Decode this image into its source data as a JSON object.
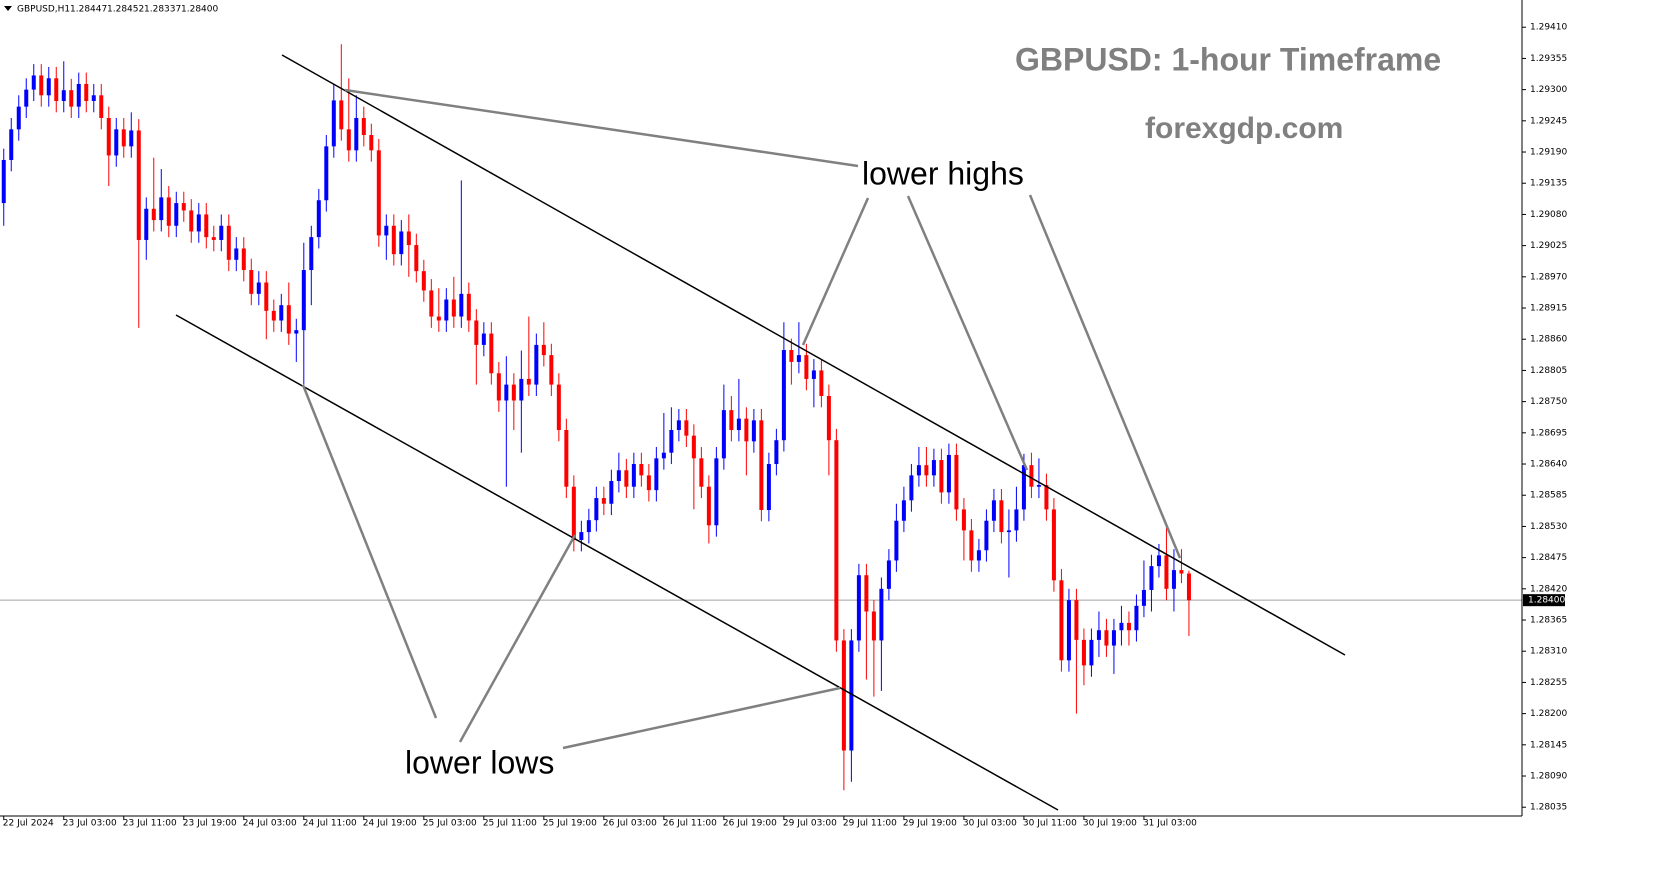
{
  "chart_data": {
    "type": "candlestick",
    "title": "GBPUSD: 1-hour Timeframe",
    "subtitle": "forexgdp.com",
    "symbol": "GBPUSD,H1",
    "ohlc_labels": [
      "1.28447",
      "1.28452",
      "1.28337",
      "1.28400"
    ],
    "annotations": [
      "lower highs",
      "lower lows"
    ],
    "up_color": "#0000ff",
    "down_color": "#ff0000",
    "xlim": [
      -0.5,
      202.4
    ],
    "ylim": [
      1.28016,
      1.29458
    ],
    "xticks": [
      {
        "value": 0,
        "label": "22 Jul 2024"
      },
      {
        "value": 8,
        "label": "23 Jul 03:00"
      },
      {
        "value": 16,
        "label": "23 Jul 11:00"
      },
      {
        "value": 24,
        "label": "23 Jul 19:00"
      },
      {
        "value": 32,
        "label": "24 Jul 03:00"
      },
      {
        "value": 40,
        "label": "24 Jul 11:00"
      },
      {
        "value": 48,
        "label": "24 Jul 19:00"
      },
      {
        "value": 56,
        "label": "25 Jul 03:00"
      },
      {
        "value": 64,
        "label": "25 Jul 11:00"
      },
      {
        "value": 72,
        "label": "25 Jul 19:00"
      },
      {
        "value": 80,
        "label": "26 Jul 03:00"
      },
      {
        "value": 88,
        "label": "26 Jul 11:00"
      },
      {
        "value": 96,
        "label": "26 Jul 19:00"
      },
      {
        "value": 104,
        "label": "29 Jul 03:00"
      },
      {
        "value": 112,
        "label": "29 Jul 11:00"
      },
      {
        "value": 120,
        "label": "29 Jul 19:00"
      },
      {
        "value": 128,
        "label": "30 Jul 03:00"
      },
      {
        "value": 136,
        "label": "30 Jul 11:00"
      },
      {
        "value": 144,
        "label": "30 Jul 19:00"
      },
      {
        "value": 152,
        "label": "31 Jul 03:00"
      }
    ],
    "yticks": [
      {
        "value": 1.2941,
        "label": "1.29410"
      },
      {
        "value": 1.29355,
        "label": "1.29355"
      },
      {
        "value": 1.293,
        "label": "1.29300"
      },
      {
        "value": 1.29245,
        "label": "1.29245"
      },
      {
        "value": 1.2919,
        "label": "1.29190"
      },
      {
        "value": 1.29135,
        "label": "1.29135"
      },
      {
        "value": 1.2908,
        "label": "1.29080"
      },
      {
        "value": 1.29025,
        "label": "1.29025"
      },
      {
        "value": 1.2897,
        "label": "1.28970"
      },
      {
        "value": 1.28915,
        "label": "1.28915"
      },
      {
        "value": 1.2886,
        "label": "1.28860"
      },
      {
        "value": 1.28805,
        "label": "1.28805"
      },
      {
        "value": 1.2875,
        "label": "1.28750"
      },
      {
        "value": 1.28695,
        "label": "1.28695"
      },
      {
        "value": 1.2864,
        "label": "1.28640"
      },
      {
        "value": 1.28585,
        "label": "1.28585"
      },
      {
        "value": 1.2853,
        "label": "1.28530"
      },
      {
        "value": 1.28475,
        "label": "1.28475"
      },
      {
        "value": 1.2842,
        "label": "1.28420"
      },
      {
        "value": 1.28365,
        "label": "1.28365"
      },
      {
        "value": 1.2831,
        "label": "1.28310"
      },
      {
        "value": 1.28255,
        "label": "1.28255"
      },
      {
        "value": 1.282,
        "label": "1.28200"
      },
      {
        "value": 1.28145,
        "label": "1.28145"
      },
      {
        "value": 1.2809,
        "label": "1.28090"
      },
      {
        "value": 1.28035,
        "label": "1.28035"
      }
    ],
    "price_line": {
      "value": 1.284,
      "label": "1.28400"
    },
    "open": [
      1.291,
      1.29176,
      1.2923,
      1.2927,
      1.293,
      1.29325,
      1.2929,
      1.2932,
      1.2928,
      1.29299,
      1.2927,
      1.2931,
      1.2928,
      1.2929,
      1.2925,
      1.29184,
      1.2923,
      1.292,
      1.29228,
      1.29035,
      1.2909,
      1.2907,
      1.2911,
      1.2906,
      1.291,
      1.29087,
      1.2905,
      1.2908,
      1.2904,
      1.29035,
      1.2906,
      1.29,
      1.2902,
      1.28982,
      1.2894,
      1.2896,
      1.2891,
      1.28893,
      1.2892,
      1.2887,
      1.28876,
      1.28982,
      1.2904,
      1.29105,
      1.292,
      1.29281,
      1.2923,
      1.29193,
      1.2925,
      1.2922,
      1.29193,
      1.29043,
      1.2906,
      1.2901,
      1.2905,
      1.29026,
      1.2898,
      1.28946,
      1.289,
      1.28893,
      1.2893,
      1.289,
      1.2894,
      1.28893,
      1.2885,
      1.2887,
      1.288,
      1.28752,
      1.2878,
      1.28752,
      1.2879,
      1.2878,
      1.2885,
      1.28832,
      1.2878,
      1.287,
      1.286,
      1.28506,
      1.2852,
      1.28541,
      1.2858,
      1.2857,
      1.2861,
      1.28629,
      1.286,
      1.2864,
      1.2862,
      1.28594,
      1.2865,
      1.2866,
      1.287,
      1.28717,
      1.2869,
      1.2865,
      1.286,
      1.28532,
      1.2865,
      1.28735,
      1.287,
      1.2872,
      1.2868,
      1.28717,
      1.28559,
      1.2864,
      1.28682,
      1.28841,
      1.2882,
      1.28832,
      1.2879,
      1.28805,
      1.2876,
      1.28682,
      1.28329,
      1.28135,
      1.28329,
      1.28444,
      1.2838,
      1.28329,
      1.2842,
      1.2847,
      1.2854,
      1.28576,
      1.2862,
      1.28638,
      1.2862,
      1.28647,
      1.2859,
      1.28656,
      1.2856,
      1.28523,
      1.2847,
      1.28488,
      1.2854,
      1.28576,
      1.2852,
      1.28523,
      1.2856,
      1.28638,
      1.286,
      1.28603,
      1.2856,
      1.28435,
      1.28294,
      1.284,
      1.2833,
      1.28285,
      1.2833,
      1.28347,
      1.2832,
      1.28347,
      1.2836,
      1.28347,
      1.2839,
      1.28418,
      1.2846,
      1.28479,
      1.2842,
      1.28453,
      1.28447
    ],
    "high": [
      1.29196,
      1.2925,
      1.2929,
      1.2932,
      1.29345,
      1.29345,
      1.2934,
      1.2934,
      1.2935,
      1.29319,
      1.2933,
      1.2933,
      1.2931,
      1.2931,
      1.2927,
      1.2925,
      1.2925,
      1.2926,
      1.29248,
      1.2911,
      1.2918,
      1.2916,
      1.2913,
      1.2912,
      1.2912,
      1.29107,
      1.291,
      1.291,
      1.2906,
      1.2908,
      1.2908,
      1.2904,
      1.2904,
      1.29002,
      1.2898,
      1.2898,
      1.2893,
      1.2894,
      1.2896,
      1.28896,
      1.2903,
      1.2906,
      1.29125,
      1.2922,
      1.2931,
      1.2938,
      1.2932,
      1.2929,
      1.2927,
      1.2924,
      1.29213,
      1.2908,
      1.2908,
      1.2907,
      1.2908,
      1.29046,
      1.29,
      1.28966,
      1.2895,
      1.2895,
      1.2897,
      1.2914,
      1.2896,
      1.28913,
      1.2889,
      1.2889,
      1.2882,
      1.2883,
      1.288,
      1.2884,
      1.289,
      1.2887,
      1.2889,
      1.28852,
      1.288,
      1.2872,
      1.2862,
      1.2854,
      1.28561,
      1.286,
      1.286,
      1.2863,
      1.2866,
      1.28649,
      1.2866,
      1.2866,
      1.2864,
      1.2867,
      1.2873,
      1.2874,
      1.28737,
      1.28737,
      1.2871,
      1.2867,
      1.2862,
      1.2867,
      1.2878,
      1.2876,
      1.2879,
      1.2874,
      1.28737,
      1.28737,
      1.2866,
      1.28702,
      1.2889,
      1.28861,
      1.2889,
      1.28852,
      1.28825,
      1.28825,
      1.2878,
      1.28702,
      1.28349,
      1.28349,
      1.28464,
      1.28464,
      1.284,
      1.2844,
      1.2849,
      1.2857,
      1.286,
      1.2864,
      1.2867,
      1.2867,
      1.28667,
      1.28667,
      1.28676,
      1.28676,
      1.2858,
      1.28543,
      1.28508,
      1.2856,
      1.28596,
      1.28596,
      1.2856,
      1.286,
      1.28658,
      1.2866,
      1.2865,
      1.28623,
      1.2858,
      1.28455,
      1.2842,
      1.2842,
      1.2835,
      1.2835,
      1.2838,
      1.28367,
      1.28367,
      1.2839,
      1.2838,
      1.2841,
      1.2847,
      1.2848,
      1.28499,
      1.2853,
      1.2849,
      1.2849,
      1.28452
    ],
    "low": [
      1.2906,
      1.29156,
      1.2921,
      1.2925,
      1.2928,
      1.2927,
      1.2927,
      1.2926,
      1.2926,
      1.2925,
      1.2925,
      1.2926,
      1.2926,
      1.2923,
      1.2913,
      1.29164,
      1.2918,
      1.2918,
      1.2888,
      1.29,
      1.2905,
      1.2905,
      1.2904,
      1.2904,
      1.29067,
      1.2903,
      1.2903,
      1.2902,
      1.29015,
      1.29015,
      1.2898,
      1.2898,
      1.28962,
      1.2892,
      1.2892,
      1.2886,
      1.28873,
      1.28873,
      1.2885,
      1.2882,
      1.2878,
      1.2892,
      1.2902,
      1.29085,
      1.2918,
      1.2921,
      1.29173,
      1.29173,
      1.292,
      1.29173,
      1.29023,
      1.29,
      1.2899,
      1.2899,
      1.2897,
      1.2896,
      1.28926,
      1.2888,
      1.28873,
      1.28873,
      1.2888,
      1.2888,
      1.28873,
      1.2878,
      1.2883,
      1.2878,
      1.28732,
      1.286,
      1.287,
      1.2866,
      1.2876,
      1.2876,
      1.28812,
      1.2876,
      1.2868,
      1.2858,
      1.28486,
      1.28486,
      1.285,
      1.28521,
      1.2855,
      1.2855,
      1.2859,
      1.2858,
      1.2858,
      1.286,
      1.28574,
      1.28574,
      1.2863,
      1.2864,
      1.2868,
      1.2867,
      1.2856,
      1.2858,
      1.285,
      1.28512,
      1.2863,
      1.2868,
      1.2868,
      1.2862,
      1.2866,
      1.28539,
      1.28539,
      1.2862,
      1.28662,
      1.2878,
      1.288,
      1.2877,
      1.2874,
      1.2874,
      1.2862,
      1.28309,
      1.28065,
      1.2808,
      1.28309,
      1.2826,
      1.2823,
      1.2824,
      1.284,
      1.2845,
      1.2852,
      1.28556,
      1.286,
      1.286,
      1.286,
      1.2857,
      1.2857,
      1.2854,
      1.2847,
      1.2845,
      1.2845,
      1.28468,
      1.2852,
      1.285,
      1.2844,
      1.28503,
      1.2854,
      1.2858,
      1.2858,
      1.2854,
      1.28415,
      1.28274,
      1.28274,
      1.282,
      1.2825,
      1.28265,
      1.283,
      1.283,
      1.2827,
      1.2832,
      1.2832,
      1.28327,
      1.2837,
      1.2838,
      1.2844,
      1.284,
      1.2838,
      1.2843,
      1.28337
    ],
    "close": [
      1.29176,
      1.2923,
      1.2927,
      1.293,
      1.29325,
      1.2929,
      1.2932,
      1.2928,
      1.29299,
      1.2927,
      1.2931,
      1.2928,
      1.2929,
      1.2925,
      1.29184,
      1.2923,
      1.292,
      1.29228,
      1.29035,
      1.2909,
      1.2907,
      1.2911,
      1.2906,
      1.291,
      1.29087,
      1.2905,
      1.2908,
      1.2904,
      1.29035,
      1.2906,
      1.29,
      1.2902,
      1.28982,
      1.2894,
      1.2896,
      1.2891,
      1.28893,
      1.2892,
      1.2887,
      1.28876,
      1.28982,
      1.2904,
      1.29105,
      1.292,
      1.29281,
      1.2923,
      1.29193,
      1.2925,
      1.2922,
      1.29193,
      1.29043,
      1.2906,
      1.2901,
      1.2905,
      1.29026,
      1.2898,
      1.28946,
      1.289,
      1.28893,
      1.2893,
      1.289,
      1.2894,
      1.28893,
      1.2885,
      1.2887,
      1.288,
      1.28752,
      1.2878,
      1.28752,
      1.2879,
      1.2878,
      1.2885,
      1.28832,
      1.2878,
      1.287,
      1.286,
      1.28506,
      1.2852,
      1.28541,
      1.2858,
      1.2857,
      1.2861,
      1.28629,
      1.286,
      1.2864,
      1.2862,
      1.28594,
      1.2865,
      1.2866,
      1.287,
      1.28717,
      1.2869,
      1.2865,
      1.286,
      1.28532,
      1.2865,
      1.28735,
      1.287,
      1.2872,
      1.2868,
      1.28717,
      1.28559,
      1.2864,
      1.28682,
      1.28841,
      1.2882,
      1.28832,
      1.2879,
      1.28805,
      1.2876,
      1.28682,
      1.28329,
      1.28135,
      1.28329,
      1.28444,
      1.2838,
      1.28329,
      1.2842,
      1.2847,
      1.2854,
      1.28576,
      1.2862,
      1.28638,
      1.2862,
      1.28647,
      1.2859,
      1.28656,
      1.2856,
      1.28523,
      1.2847,
      1.28488,
      1.2854,
      1.28576,
      1.2852,
      1.28523,
      1.2856,
      1.28638,
      1.286,
      1.28603,
      1.2856,
      1.28435,
      1.28294,
      1.284,
      1.2833,
      1.28285,
      1.2833,
      1.28347,
      1.2832,
      1.28347,
      1.2836,
      1.28347,
      1.2839,
      1.28418,
      1.2846,
      1.28479,
      1.2842,
      1.28453,
      1.28447,
      1.284
    ]
  }
}
